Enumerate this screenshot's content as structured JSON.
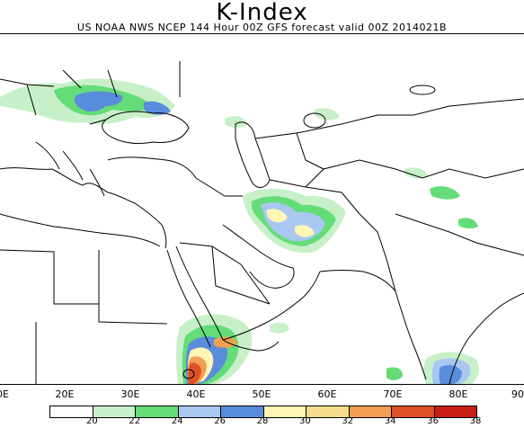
{
  "title": "K-Index",
  "subtitle": "US NOAA NWS NCEP 144 Hour 00Z GFS forecast valid 00Z 2014021B",
  "longitude_labels": [
    "0E",
    "20E",
    "30E",
    "40E",
    "50E",
    "60E",
    "70E",
    "80E",
    "90"
  ],
  "colorbar": {
    "colors": [
      "#ffffff",
      "#c8f0c8",
      "#64dc78",
      "#a8c8f0",
      "#5a8cdc",
      "#fff5b4",
      "#f5dc8c",
      "#f0a050",
      "#e05028",
      "#c81e14"
    ],
    "labels": [
      "20",
      "22",
      "24",
      "26",
      "28",
      "30",
      "32",
      "34",
      "36",
      "38"
    ]
  },
  "colors": {
    "coastline": "#000000",
    "green_light": "#c8f0c8",
    "green": "#64dc78",
    "blue_light": "#a8c8f0",
    "blue": "#5a8cdc",
    "yellow": "#fff5b4",
    "orange": "#f0a050",
    "red": "#e05028",
    "dark_red": "#c81e14"
  }
}
